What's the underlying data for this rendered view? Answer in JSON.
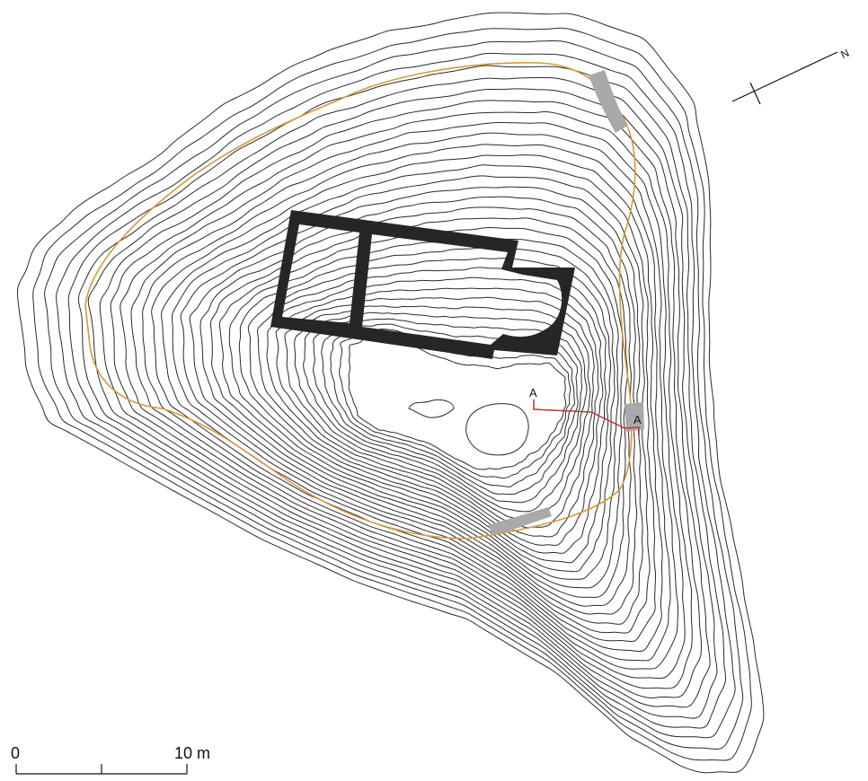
{
  "north_label": "N",
  "section": {
    "start_label": "A",
    "end_label": "A"
  },
  "scale_bar": {
    "start_label": "0",
    "end_label": "10 m"
  },
  "colors": {
    "contour": "#2a2a2a",
    "enclosure_line": "#d49a3a",
    "church_walls": "#262626",
    "wall_remains": "#a9a9a9",
    "section_line": "#b5363a",
    "background": "#ffffff"
  },
  "symbols": [
    "north-arrow-icon",
    "section-line",
    "scale-bar"
  ]
}
